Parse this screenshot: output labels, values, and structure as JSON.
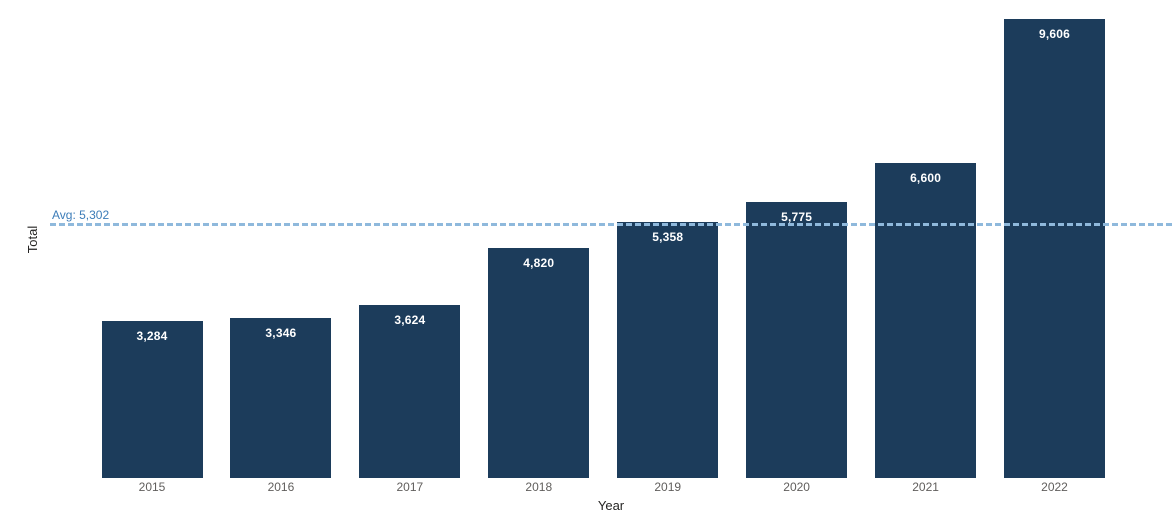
{
  "chart_data": {
    "type": "bar",
    "categories": [
      "2015",
      "2016",
      "2017",
      "2018",
      "2019",
      "2020",
      "2021",
      "2022"
    ],
    "values": [
      3284,
      3346,
      3624,
      4820,
      5358,
      5775,
      6600,
      9606
    ],
    "value_labels": [
      "3,284",
      "3,346",
      "3,624",
      "4,820",
      "5,358",
      "5,775",
      "6,600",
      "9,606"
    ],
    "xlabel": "Year",
    "ylabel": "Total",
    "ylim": [
      0,
      10000
    ],
    "grid": "off",
    "legend": "none",
    "average_line": {
      "label": "Avg: 5,302",
      "value": 5302
    },
    "colors": {
      "bar": "#1c3c5b",
      "bar_label": "#ffffff",
      "avg_line": "#8fb9dc",
      "avg_label_text": "#3c7cb8",
      "tick_label": "#605e5c",
      "axis_title": "#252423",
      "background": "#ffffff"
    }
  }
}
